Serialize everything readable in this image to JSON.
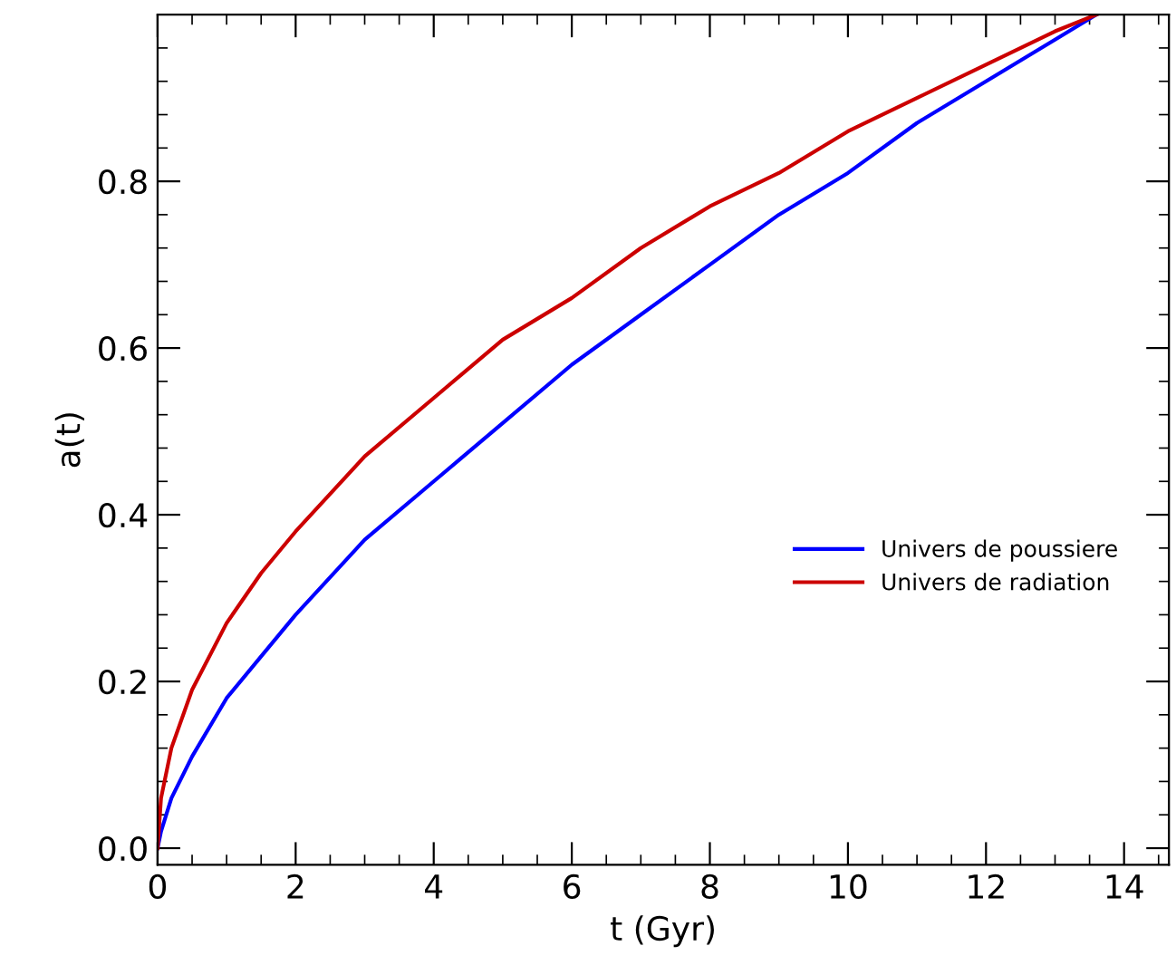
{
  "chart_data": {
    "type": "line",
    "xlabel": "t (Gyr)",
    "ylabel": "a(t)",
    "x": [
      0,
      0.05,
      0.2,
      0.5,
      1,
      1.5,
      2,
      3,
      4,
      5,
      6,
      7,
      8,
      9,
      10,
      11,
      12,
      13,
      13.6
    ],
    "series": [
      {
        "name": "Univers de poussiere",
        "color": "#0000ff",
        "values": [
          0,
          0.02,
          0.06,
          0.11,
          0.18,
          0.23,
          0.28,
          0.37,
          0.44,
          0.51,
          0.58,
          0.64,
          0.7,
          0.76,
          0.81,
          0.87,
          0.92,
          0.97,
          1.0
        ]
      },
      {
        "name": "Univers de radiation",
        "color": "#cc0000",
        "values": [
          0,
          0.06,
          0.12,
          0.19,
          0.27,
          0.33,
          0.38,
          0.47,
          0.54,
          0.61,
          0.66,
          0.72,
          0.77,
          0.81,
          0.86,
          0.9,
          0.94,
          0.98,
          1.0
        ]
      }
    ],
    "xlim": [
      0,
      14.65
    ],
    "ylim": [
      -0.02,
      1.0
    ],
    "xticks": [
      0,
      2,
      4,
      6,
      8,
      10,
      12,
      14
    ],
    "yticks": [
      {
        "value": 0,
        "label": "0.0"
      },
      {
        "value": 0.2,
        "label": "0.2"
      },
      {
        "value": 0.4,
        "label": "0.4"
      },
      {
        "value": 0.6,
        "label": "0.6"
      },
      {
        "value": 0.8,
        "label": "0.8"
      }
    ],
    "legend": "right",
    "grid": false,
    "marker": "none",
    "line_style": "solid"
  }
}
